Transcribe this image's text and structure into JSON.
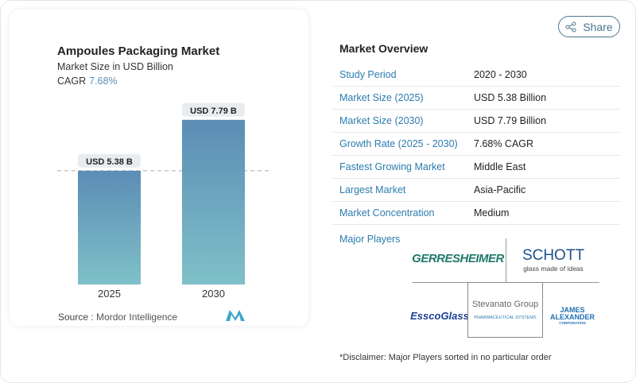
{
  "header": {
    "share_label": "Share",
    "share_icon": "share-icon"
  },
  "chart_data": {
    "type": "bar",
    "title": "Ampoules Packaging Market",
    "subtitle": "Market Size in USD Billion",
    "cagr_label": "CAGR",
    "cagr_value": "7.68%",
    "categories": [
      "2025",
      "2030"
    ],
    "values": [
      5.38,
      7.79
    ],
    "data_labels": [
      "USD 5.38 B",
      "USD 7.79 B"
    ],
    "bar_gradient": [
      "#5b8db5",
      "#7fc0c8"
    ],
    "reference_line": 5.38,
    "source_label": "Source :",
    "source_value": "Mordor Intelligence"
  },
  "overview": {
    "title": "Market Overview",
    "rows": [
      {
        "label": "Study Period",
        "value": "2020 - 2030"
      },
      {
        "label": "Market Size (2025)",
        "value": "USD 5.38 Billion"
      },
      {
        "label": "Market Size (2030)",
        "value": "USD 7.79 Billion"
      },
      {
        "label": "Growth Rate (2025 - 2030)",
        "value": "7.68% CAGR"
      },
      {
        "label": "Fastest Growing Market",
        "value": "Middle East"
      },
      {
        "label": "Largest Market",
        "value": "Asia-Pacific"
      },
      {
        "label": "Market Concentration",
        "value": "Medium"
      }
    ],
    "major_players_label": "Major Players",
    "players": [
      "GERRESHEIMER",
      "SCHOTT",
      "glass made of ideas",
      "EsscoGlass",
      "Stevanato Group",
      "PHARMACEUTICAL SYSTEMS",
      "JAMES ALEXANDER",
      "CORPORATION"
    ],
    "disclaimer": "*Disclaimer: Major Players sorted in no particular order"
  }
}
